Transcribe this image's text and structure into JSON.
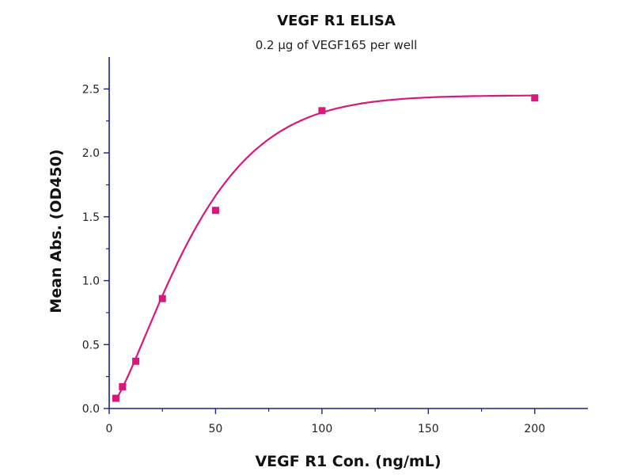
{
  "chart_data": {
    "type": "scatter",
    "title": "VEGF R1 ELISA",
    "subtitle": "0.2 µg of VEGF165 per well",
    "xlabel": "VEGF R1 Con. (ng/mL)",
    "ylabel": "Mean Abs. (OD450)",
    "xlim": [
      0,
      225
    ],
    "ylim": [
      0,
      2.75
    ],
    "xticks": [
      0,
      50,
      100,
      150,
      200
    ],
    "yticks": [
      0.0,
      0.5,
      1.0,
      1.5,
      2.0,
      2.5
    ],
    "xtick_labels": [
      "0",
      "50",
      "100",
      "150",
      "200"
    ],
    "ytick_labels": [
      "0.0",
      "0.5",
      "1.0",
      "1.5",
      "2.0",
      "2.5"
    ],
    "grid": false,
    "legend": "none",
    "series": [
      {
        "x": [
          3.125,
          6.25,
          12.5,
          25,
          50,
          100,
          200
        ],
        "y": [
          0.08,
          0.17,
          0.37,
          0.86,
          1.55,
          2.33,
          2.43
        ],
        "marker": "square",
        "fit": "logistic",
        "color": "#d6197a"
      }
    ],
    "axis_color": "#1a237e"
  }
}
